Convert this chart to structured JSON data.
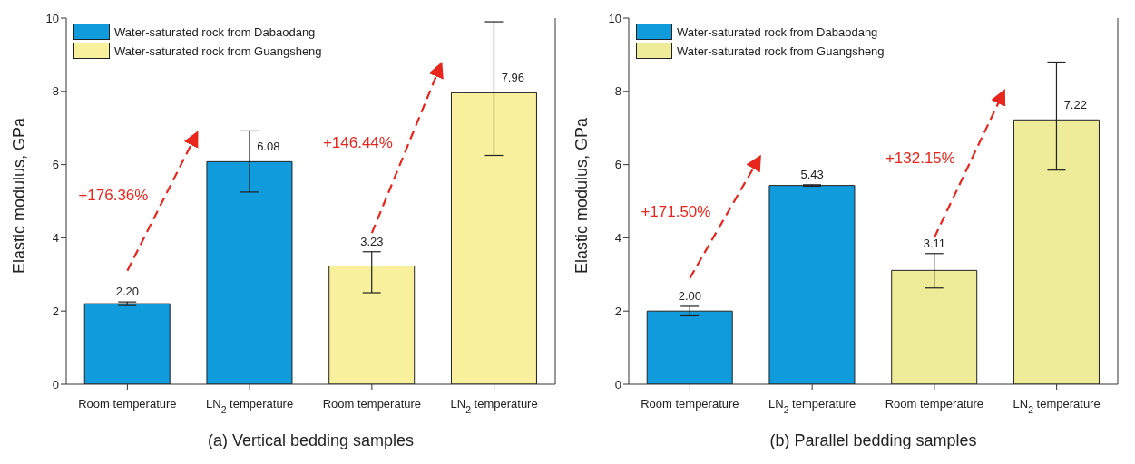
{
  "chart_data": [
    {
      "type": "bar",
      "title": "(a) Vertical bedding samples",
      "ylabel": "Elastic modulus, GPa",
      "categories": [
        "Room temperature",
        "LN$_{2}$ temperature",
        "Room temperature",
        "LN$_{2}$ temperature"
      ],
      "series": [
        {
          "name": "Water-saturated rock from Dabaodang",
          "color": "#0f9bdc",
          "values": [
            2.2,
            6.08,
            null,
            null
          ],
          "errors": [
            [
              2.15,
              2.25
            ],
            [
              5.25,
              6.92
            ],
            null,
            null
          ],
          "value_labels": [
            "2.20",
            "6.08",
            null,
            null
          ]
        },
        {
          "name": "Water-saturated rock from Guangsheng",
          "color": "#f8f09c",
          "values": [
            null,
            null,
            3.23,
            7.96
          ],
          "errors": [
            null,
            null,
            [
              2.5,
              3.62
            ],
            [
              6.25,
              9.9
            ]
          ],
          "value_labels": [
            null,
            null,
            "3.23",
            "7.96"
          ]
        }
      ],
      "ylim": [
        0,
        10
      ],
      "yticks": [
        0,
        2,
        4,
        6,
        8,
        10
      ],
      "grid": false,
      "legend": "top left",
      "annotations": [
        "+176.36%",
        "+146.44%"
      ]
    },
    {
      "type": "bar",
      "title": "(b) Parallel bedding samples",
      "ylabel": "Elastic modulus, GPa",
      "categories": [
        "Room temperature",
        "LN$_{2}$ temperature",
        "Room temperature",
        "LN$_{2}$ temperature"
      ],
      "series": [
        {
          "name": "Water-saturated rock from Dabaodang",
          "color": "#0f9bdc",
          "values": [
            2.0,
            5.43,
            null,
            null
          ],
          "errors": [
            [
              1.87,
              2.13
            ],
            [
              5.41,
              5.45
            ],
            null,
            null
          ],
          "value_labels": [
            "2.00",
            "5.43",
            null,
            null
          ]
        },
        {
          "name": "Water-saturated rock from Guangsheng",
          "color": "#eeec98",
          "values": [
            null,
            null,
            3.11,
            7.22
          ],
          "errors": [
            null,
            null,
            [
              2.63,
              3.57
            ],
            [
              5.85,
              8.8
            ]
          ],
          "value_labels": [
            null,
            null,
            "3.11",
            "7.22"
          ]
        }
      ],
      "ylim": [
        0,
        10
      ],
      "yticks": [
        0,
        2,
        4,
        6,
        8,
        10
      ],
      "grid": false,
      "legend": "top left",
      "annotations": [
        "+171.50%",
        "+132.15%"
      ]
    }
  ]
}
